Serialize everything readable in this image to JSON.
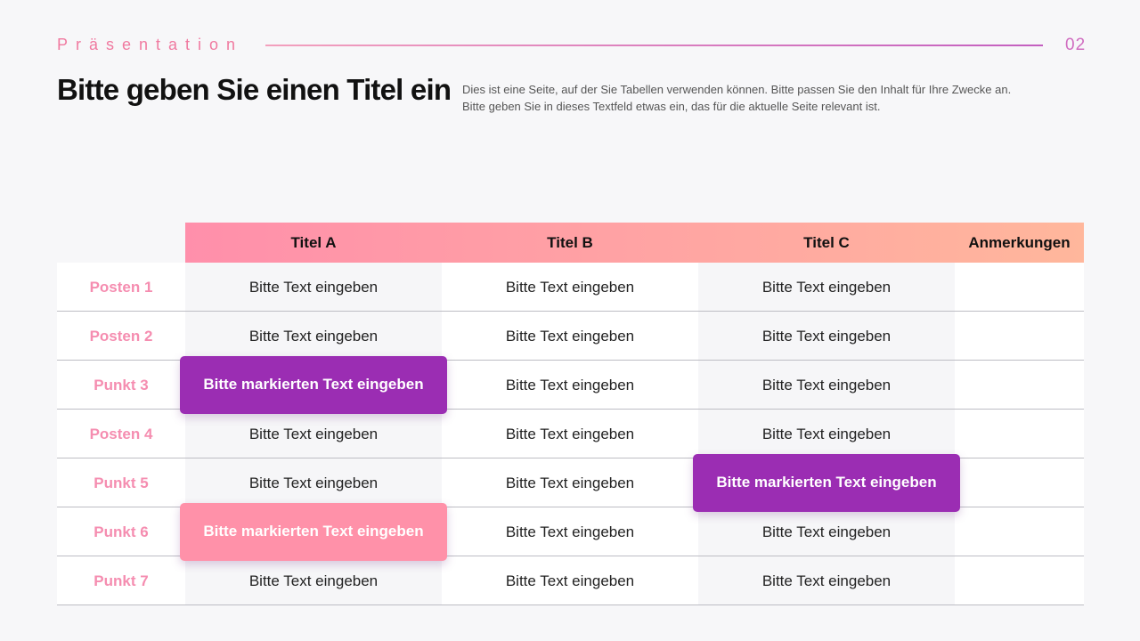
{
  "header": {
    "label": "Präsentation",
    "page_number": "02",
    "title": "Bitte geben Sie einen Titel ein",
    "description": [
      "Dies ist eine Seite, auf der Sie Tabellen verwenden können. Bitte passen Sie den Inhalt für Ihre Zwecke an.",
      "Bitte geben Sie in dieses Textfeld etwas ein, das für die aktuelle Seite relevant ist."
    ]
  },
  "table": {
    "columns": [
      "Titel A",
      "Titel B",
      "Titel C",
      "Anmerkungen"
    ],
    "rows": [
      {
        "label": "Posten 1",
        "cells": [
          "Bitte Text eingeben",
          "Bitte Text eingeben",
          "Bitte Text eingeben"
        ]
      },
      {
        "label": "Posten 2",
        "cells": [
          "Bitte Text eingeben",
          "Bitte Text eingeben",
          "Bitte Text eingeben"
        ]
      },
      {
        "label": "Punkt 3",
        "cells": [
          {
            "text": "Bitte markierten Text eingeben",
            "color": "#9b2db3"
          },
          "Bitte Text eingeben",
          "Bitte Text eingeben"
        ]
      },
      {
        "label": "Posten 4",
        "cells": [
          "Bitte Text eingeben",
          "Bitte Text eingeben",
          "Bitte Text eingeben"
        ]
      },
      {
        "label": "Punkt 5",
        "cells": [
          "Bitte Text eingeben",
          "Bitte Text eingeben",
          {
            "text": "Bitte markierten Text eingeben",
            "color": "#9b2db3"
          }
        ]
      },
      {
        "label": "Punkt 6",
        "cells": [
          {
            "text": "Bitte markierten Text eingeben",
            "color": "#ff91a9"
          },
          "Bitte Text eingeben",
          "Bitte Text eingeben"
        ]
      },
      {
        "label": "Punkt 7",
        "cells": [
          "Bitte Text eingeben",
          "Bitte Text eingeben",
          "Bitte Text eingeben"
        ]
      }
    ]
  }
}
